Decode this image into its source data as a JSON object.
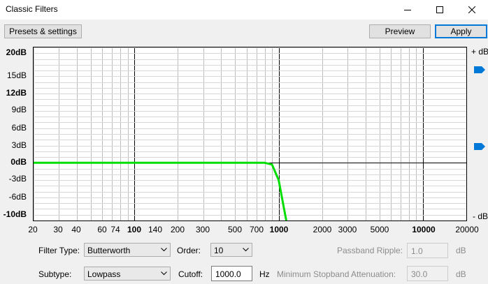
{
  "window": {
    "title": "Classic Filters",
    "controls": [
      "minimize-icon",
      "maximize-icon",
      "close-icon"
    ]
  },
  "toolbar": {
    "presets_label": "Presets & settings",
    "preview_label": "Preview",
    "apply_label": "Apply"
  },
  "graph": {
    "y_axis_labels": [
      "20dB",
      "15dB",
      "12dB",
      "9dB",
      "6dB",
      "3dB",
      "0dB",
      "-3dB",
      "-6dB",
      "-10dB"
    ],
    "x_axis_labels": [
      "20",
      "30",
      "40",
      "60",
      "74",
      "100",
      "140",
      "200",
      "300",
      "500",
      "700",
      "1000",
      "2000",
      "3000",
      "5000",
      "10000",
      "20000"
    ],
    "db_top_label": "+ dB",
    "db_bottom_label": "- dB",
    "curve_color": "#00dd00"
  },
  "chart_data": {
    "type": "line",
    "title": "",
    "xlabel": "",
    "ylabel": "",
    "x_scale": "log",
    "xlim": [
      20,
      20000
    ],
    "ylim": [
      -10,
      20
    ],
    "grid": true,
    "series": [
      {
        "x": [
          20,
          100,
          500,
          800,
          900,
          1000,
          1100,
          1130
        ],
        "y": [
          0,
          0,
          0,
          0,
          -0.3,
          -3,
          -8.5,
          -10
        ]
      }
    ]
  },
  "controls": {
    "filter_type_label": "Filter Type:",
    "filter_type_value": "Butterworth",
    "order_label": "Order:",
    "order_value": "10",
    "passband_ripple_label": "Passband Ripple:",
    "passband_ripple_value": "1.0",
    "passband_ripple_unit": "dB",
    "subtype_label": "Subtype:",
    "subtype_value": "Lowpass",
    "cutoff_label": "Cutoff:",
    "cutoff_value": "1000.0",
    "cutoff_unit": "Hz",
    "stopband_label": "Minimum Stopband Attenuation:",
    "stopband_value": "30.0",
    "stopband_unit": "dB"
  }
}
